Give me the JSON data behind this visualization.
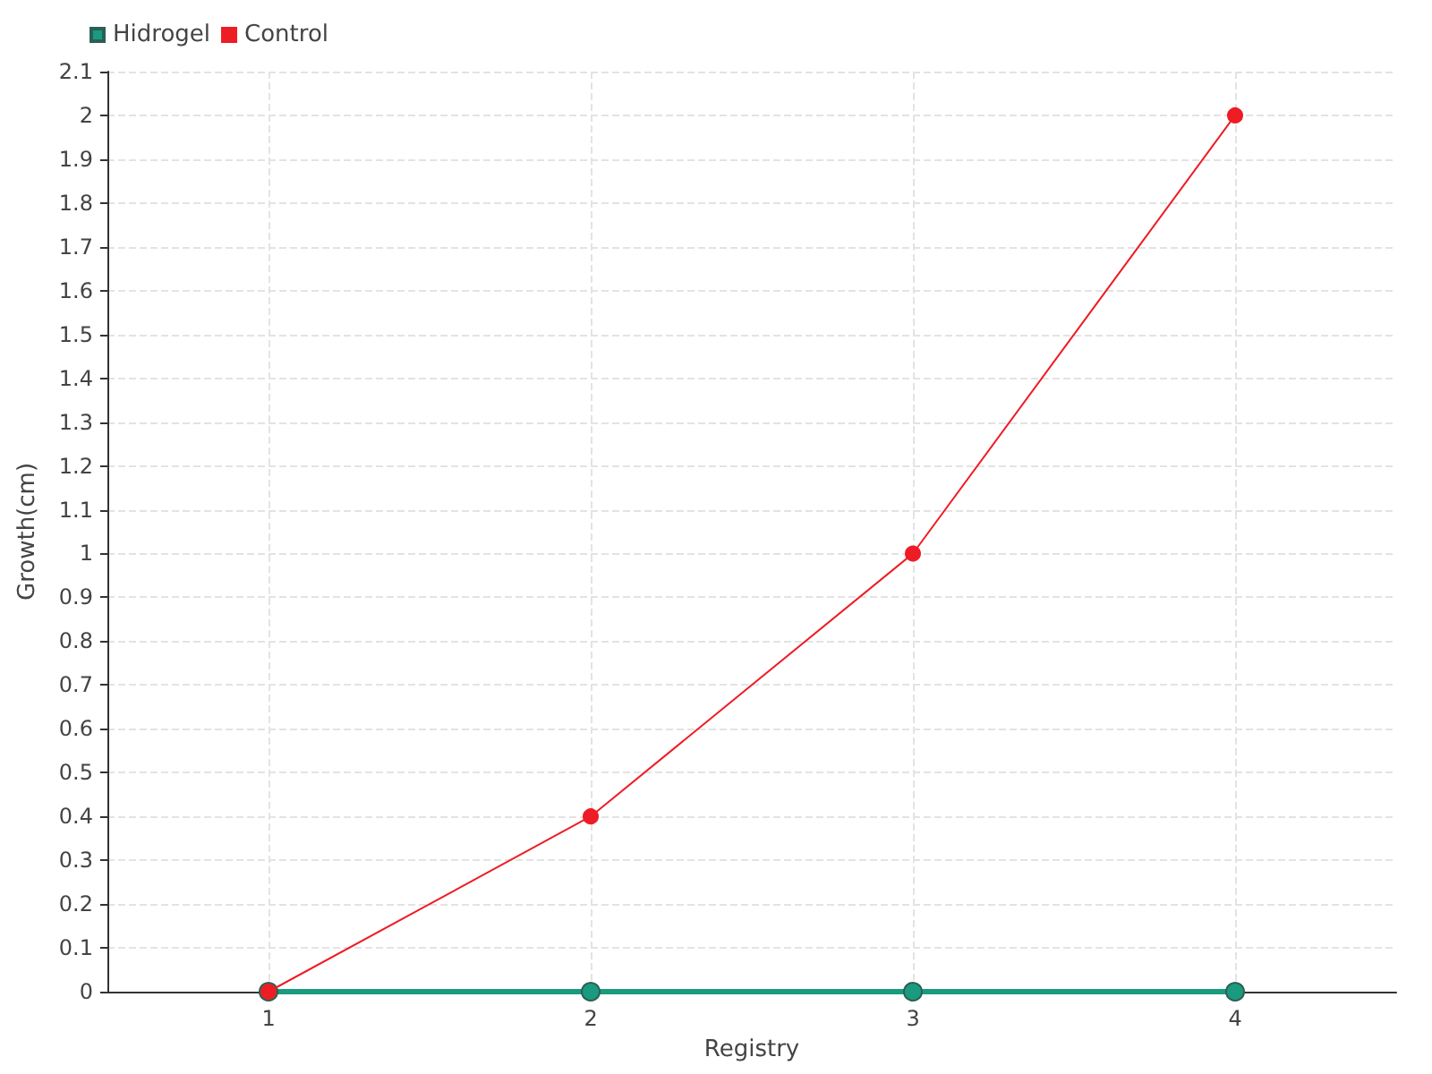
{
  "chart_data": {
    "type": "line",
    "xlabel": "Registry",
    "ylabel": "Growth(cm)",
    "x": [
      1,
      2,
      3,
      4
    ],
    "series": [
      {
        "name": "Hidrogel",
        "color": "#1a9a7e",
        "values": [
          0,
          0,
          0,
          0
        ]
      },
      {
        "name": "Control",
        "color": "#ee1c25",
        "values": [
          0,
          0.4,
          1,
          2
        ]
      }
    ],
    "xlim": [
      0.5,
      4.5
    ],
    "xticks": [
      1,
      2,
      3,
      4
    ],
    "ylim": [
      0,
      2.1
    ],
    "yticks": [
      0,
      0.1,
      0.2,
      0.3,
      0.4,
      0.5,
      0.6,
      0.7,
      0.8,
      0.9,
      1,
      1.1,
      1.2,
      1.3,
      1.4,
      1.5,
      1.6,
      1.7,
      1.8,
      1.9,
      2,
      2.1
    ],
    "grid": true,
    "legend": "top left",
    "marker": "circle",
    "line_style": "solid"
  }
}
